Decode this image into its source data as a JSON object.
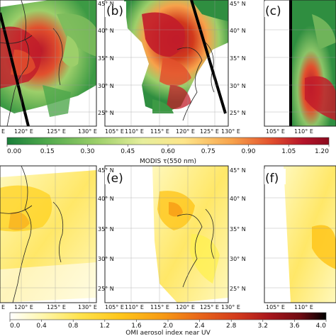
{
  "top_row": {
    "panels": [
      {
        "letter": ""
      },
      {
        "letter": "(b)"
      },
      {
        "letter": "(c)"
      }
    ],
    "lat_labels": [
      "45° N",
      "40° N",
      "35° N",
      "30° N",
      "25° N"
    ],
    "lon_labels_left": [
      "E",
      "120° E",
      "125° E",
      "130° E"
    ],
    "lon_labels_mid": [
      "105° E",
      "110° E",
      "115° E",
      "120° E",
      "125° E",
      "130° E"
    ],
    "lon_labels_right": [
      "105° E",
      "110° E"
    ]
  },
  "bottom_row": {
    "panels": [
      {
        "letter": ""
      },
      {
        "letter": "(e)"
      },
      {
        "letter": "(f)"
      }
    ],
    "lat_labels": [
      "45° N",
      "40° N",
      "35° N",
      "30° N",
      "25° N"
    ],
    "lon_labels_left": [
      "E",
      "120° E",
      "125° E",
      "130° E"
    ],
    "lon_labels_mid": [
      "105° E",
      "110° E",
      "115° E",
      "120° E",
      "125° E",
      "130° E"
    ],
    "lon_labels_right": [
      "105° E",
      "110° E"
    ]
  },
  "modis_colorbar": {
    "ticks": [
      "0.00",
      "0.15",
      "0.30",
      "0.45",
      "0.60",
      "0.75",
      "0.90",
      "1.05",
      "1.20"
    ],
    "title": "MODIS  τ(550 nm)",
    "colors": [
      "#1a7f3a",
      "#4fa84c",
      "#9dcf6a",
      "#e6ee9c",
      "#fde58a",
      "#f7a24b",
      "#e2502d",
      "#b5142a",
      "#8b0a1e"
    ]
  },
  "omi_colorbar": {
    "ticks": [
      "0.0",
      "0.4",
      "0.8",
      "1.2",
      "1.6",
      "2.0",
      "2.4",
      "2.8",
      "3.2",
      "3.6",
      "4.0"
    ],
    "title": "OMI aerosol index near UV",
    "colors": [
      "#ffffff",
      "#fff7b0",
      "#ffe34d",
      "#ffc61a",
      "#f79b14",
      "#e8661a",
      "#d23a1c",
      "#a8161c",
      "#6e0b12",
      "#000000"
    ]
  }
}
